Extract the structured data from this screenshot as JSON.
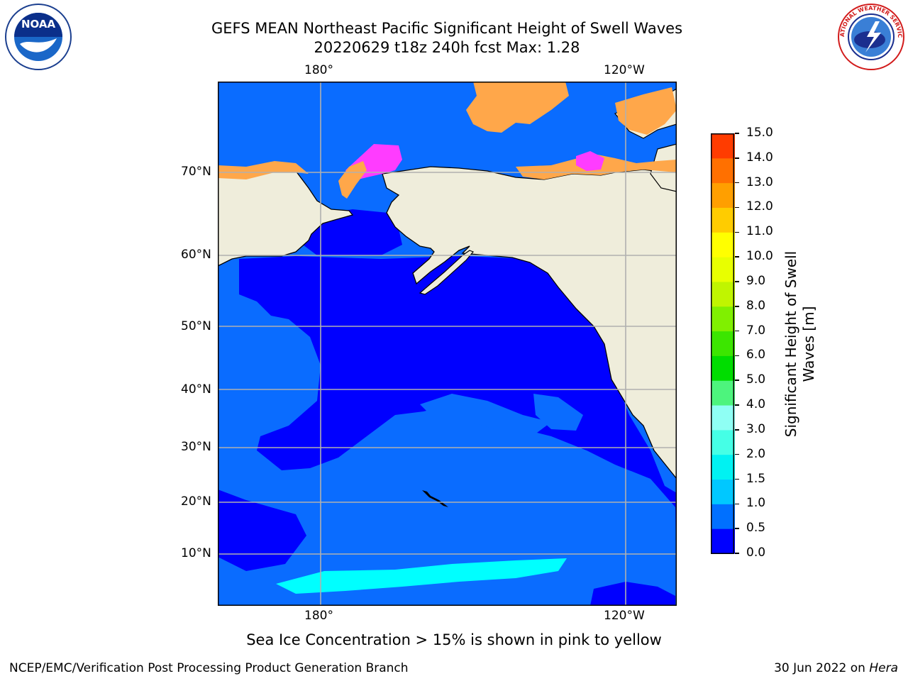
{
  "title": {
    "line1": "GEFS MEAN Northeast Pacific Significant Height of Swell Waves",
    "line2": "20220629 t18z 240h fcst   Max: 1.28"
  },
  "map": {
    "lon_top": [
      "180°",
      "120°W"
    ],
    "lon_bottom": [
      "180°",
      "120°W"
    ],
    "lat_labels": [
      "70°N",
      "60°N",
      "50°N",
      "40°N",
      "30°N",
      "20°N",
      "10°N"
    ]
  },
  "colorbar": {
    "label_line1": "Significant Height of Swell",
    "label_line2": "Waves [m]",
    "ticks": [
      "0.0",
      "0.5",
      "1.0",
      "1.5",
      "2.0",
      "3.0",
      "4.0",
      "5.0",
      "6.0",
      "7.0",
      "8.0",
      "9.0",
      "10.0",
      "11.0",
      "12.0",
      "13.0",
      "14.0",
      "15.0"
    ],
    "colors": [
      "#0000ff",
      "#0070ff",
      "#00c8ff",
      "#00f2f2",
      "#45ffe6",
      "#8ffff4",
      "#4df47d",
      "#00dd00",
      "#3ce600",
      "#80f000",
      "#c0f500",
      "#e8ff00",
      "#ffff00",
      "#ffcc00",
      "#ff9f00",
      "#ff7000",
      "#ff3c00",
      "#ff0000"
    ]
  },
  "colors": {
    "deep_blue": "#0000ff",
    "mid_blue": "#0a6cff",
    "cyan": "#00ffff",
    "land": "#efeddb",
    "ice_orange": "#ffa74a",
    "ice_pink": "#ff3cff"
  },
  "logos": {
    "noaa": "NOAA",
    "nws": "NATIONAL WEATHER SERVICE"
  },
  "bottom_note": "Sea Ice Concentration > 15% is shown in pink to yellow",
  "footer": {
    "left": "NCEP/EMC/Verification Post Processing Product Generation Branch",
    "right_prefix": "30 Jun 2022 on ",
    "right_host": "Hera"
  }
}
